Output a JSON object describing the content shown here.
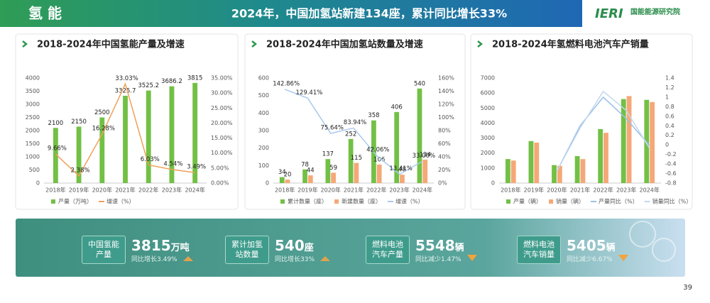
{
  "header": {
    "section": "氢 能",
    "headline": "2024年，中国加氢站新建134座，累计同比增长33%",
    "logo_mark": "IERI",
    "logo_name": "国能能源研究院"
  },
  "chart_data": [
    {
      "type": "bar",
      "title": "2018-2024年中国氢能产量及增速",
      "categories": [
        "2018年",
        "2019年",
        "2020年",
        "2021年",
        "2022年",
        "2023年",
        "2024年"
      ],
      "series": [
        {
          "name": "产量（万吨）",
          "type": "bar",
          "color": "#72c045",
          "data_labels": true,
          "values": [
            2100,
            2150,
            2500,
            3325.7,
            3525.2,
            3686.2,
            3815
          ]
        },
        {
          "name": "增速（%）",
          "type": "line",
          "axis": "y2",
          "color": "#f0a05a",
          "data_labels": true,
          "values": [
            9.66,
            2.38,
            16.28,
            33.03,
            6.03,
            4.54,
            3.49
          ],
          "value_labels": [
            "9.66%",
            "2.38%",
            "16.28%",
            "33.03%",
            "6.03%",
            "4.54%",
            "3.49%"
          ]
        }
      ],
      "ylim": [
        0,
        4000
      ],
      "yticks": [
        0,
        500,
        1000,
        1500,
        2000,
        2500,
        3000,
        3500,
        4000
      ],
      "y2lim": [
        0,
        35
      ],
      "y2ticks": [
        {
          "value": 0,
          "label": "0.00%"
        },
        {
          "value": 5,
          "label": "5.00%"
        },
        {
          "value": 10,
          "label": "10.00%"
        },
        {
          "value": 15,
          "label": "15.00%"
        },
        {
          "value": 20,
          "label": "20.00%"
        },
        {
          "value": 25,
          "label": "25.00%"
        },
        {
          "value": 30,
          "label": "30.00%"
        },
        {
          "value": 35,
          "label": "35.00%"
        }
      ]
    },
    {
      "type": "bar",
      "title": "2018-2024年中国加氢站数量及增速",
      "categories": [
        "2018年",
        "2019年",
        "2020年",
        "2021年",
        "2022年",
        "2023年",
        "2024年"
      ],
      "series": [
        {
          "name": "累计数量（座）",
          "type": "bar",
          "color": "#72c045",
          "data_labels": true,
          "values": [
            34,
            78,
            137,
            252,
            358,
            406,
            540
          ]
        },
        {
          "name": "新建数量（座）",
          "type": "bar",
          "color": "#f5a877",
          "data_labels": true,
          "values": [
            20,
            44,
            59,
            115,
            106,
            48,
            134
          ]
        },
        {
          "name": "增速（%）",
          "type": "line",
          "axis": "y2",
          "color": "#a9c9ec",
          "data_labels": true,
          "values": [
            142.86,
            129.41,
            75.64,
            83.94,
            42.06,
            13.41,
            33.0
          ],
          "value_labels": [
            "142.86%",
            "129.41%",
            "75.64%",
            "83.94%",
            "42.06%",
            "13.41%",
            "33.00%"
          ]
        }
      ],
      "ylim": [
        0,
        600
      ],
      "yticks": [
        0,
        100,
        200,
        300,
        400,
        500,
        600
      ],
      "y2lim": [
        0,
        160
      ],
      "y2ticks": [
        {
          "value": 0,
          "label": "0%"
        },
        {
          "value": 20,
          "label": "20%"
        },
        {
          "value": 40,
          "label": "40%"
        },
        {
          "value": 60,
          "label": "60%"
        },
        {
          "value": 80,
          "label": "80%"
        },
        {
          "value": 100,
          "label": "100%"
        },
        {
          "value": 120,
          "label": "120%"
        },
        {
          "value": 140,
          "label": "140%"
        },
        {
          "value": 160,
          "label": "160%"
        }
      ]
    },
    {
      "type": "bar",
      "title": "2018-2024年氢燃料电池汽车产销量",
      "categories": [
        "2018年",
        "2019年",
        "2020年",
        "2021年",
        "2022年",
        "2023年",
        "2024年"
      ],
      "series": [
        {
          "name": "产量（辆）",
          "type": "bar",
          "color": "#72c045",
          "values": [
            1600,
            2800,
            1200,
            1800,
            3600,
            5600,
            5548
          ]
        },
        {
          "name": "销量（辆）",
          "type": "bar",
          "color": "#f5a877",
          "values": [
            1500,
            2700,
            1150,
            1600,
            3350,
            5800,
            5405
          ]
        },
        {
          "name": "产量同比（%）",
          "type": "line",
          "axis": "y2",
          "color": "#9cc0e6",
          "values": [
            null,
            null,
            -0.55,
            0.4,
            1.0,
            0.55,
            -0.01
          ]
        },
        {
          "name": "销量同比（%）",
          "type": "line",
          "axis": "y2",
          "color": "#c3d8ef",
          "values": [
            null,
            null,
            -0.55,
            0.35,
            1.12,
            0.72,
            -0.07
          ]
        }
      ],
      "ylim": [
        0,
        7000
      ],
      "yticks": [
        0,
        1000,
        2000,
        3000,
        4000,
        5000,
        6000,
        7000
      ],
      "y2lim": [
        -0.8,
        1.4
      ],
      "y2ticks": [
        -0.8,
        -0.6,
        -0.4,
        -0.2,
        0,
        0.2,
        0.4,
        0.6,
        0.8,
        1,
        1.2,
        1.4
      ]
    }
  ],
  "highlights": [
    {
      "label": "中国氢能产量",
      "value": "3815",
      "unit": "万吨",
      "change": "同比增长3.49%"
    },
    {
      "label": "累计加氢站数量",
      "value": "540",
      "unit": "座",
      "change": "同比增长33%"
    },
    {
      "label": "燃料电池汽车产量",
      "value": "5548",
      "unit": "辆",
      "change": "同比减少1.47%"
    },
    {
      "label": "燃料电池汽车销量",
      "value": "5405",
      "unit": "辆",
      "change": "同比减少6.67%"
    }
  ],
  "page_number": "39"
}
